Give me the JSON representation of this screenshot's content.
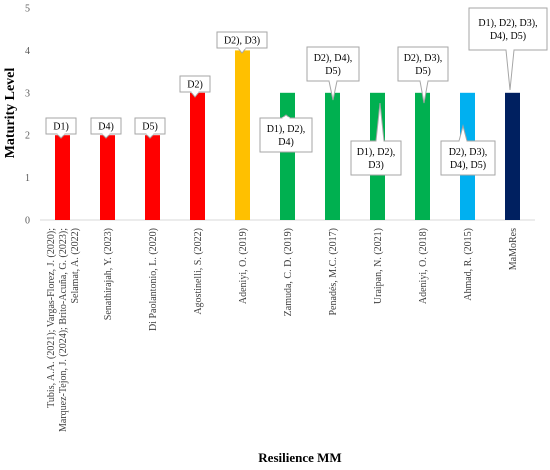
{
  "chart_data": {
    "type": "bar",
    "title": "",
    "xlabel": "Resilience MM",
    "ylabel": "Maturity Level",
    "ylim": [
      0,
      5
    ],
    "yticks": [
      0,
      1,
      2,
      3,
      4,
      5
    ],
    "grid": false,
    "legend": "none",
    "categories": [
      [
        "Tubis, A.A. (2021); Vargas-Florez, J. (2020);",
        "Marquez-Tejon, J. (2024); Brito-Acuña, G. (2023);",
        "Selamat, A. (2022)"
      ],
      [
        "Senathirajah, Y. (2023)"
      ],
      [
        "Di Paolantonio, L. (2020)"
      ],
      [
        "Agostinelli, S. (2022)"
      ],
      [
        "Adeniyi, O. (2019)"
      ],
      [
        "Zamuda, C. D. (2019)"
      ],
      [
        "Penadés, M.C. (2017)"
      ],
      [
        "Uraipan, N. (2021)"
      ],
      [
        "Adeniyi, O. (2018)"
      ],
      [
        "Ahmad, R. (2015)"
      ],
      [
        "MaMoRes"
      ]
    ],
    "values": [
      2,
      2,
      2,
      3,
      4,
      3,
      3,
      3,
      3,
      3,
      3
    ],
    "colors": [
      "#ff0000",
      "#ff0000",
      "#ff0000",
      "#ff0000",
      "#ffc000",
      "#00b050",
      "#00b050",
      "#00b050",
      "#00b050",
      "#00b0f0",
      "#002060"
    ],
    "annotations": [
      [
        "D1)"
      ],
      [
        "D4)"
      ],
      [
        "D5)"
      ],
      [
        "D2)"
      ],
      [
        "D2), D3)"
      ],
      [
        "D1), D2),",
        "D4)"
      ],
      [
        "D2), D4),",
        "D5)"
      ],
      [
        "D1), D2),",
        "D3)"
      ],
      [
        "D2), D3),",
        "D5)"
      ],
      [
        "D2), D3),",
        "D4), D5)"
      ],
      [
        "D1), D2), D3),",
        "D4), D5)"
      ]
    ]
  }
}
